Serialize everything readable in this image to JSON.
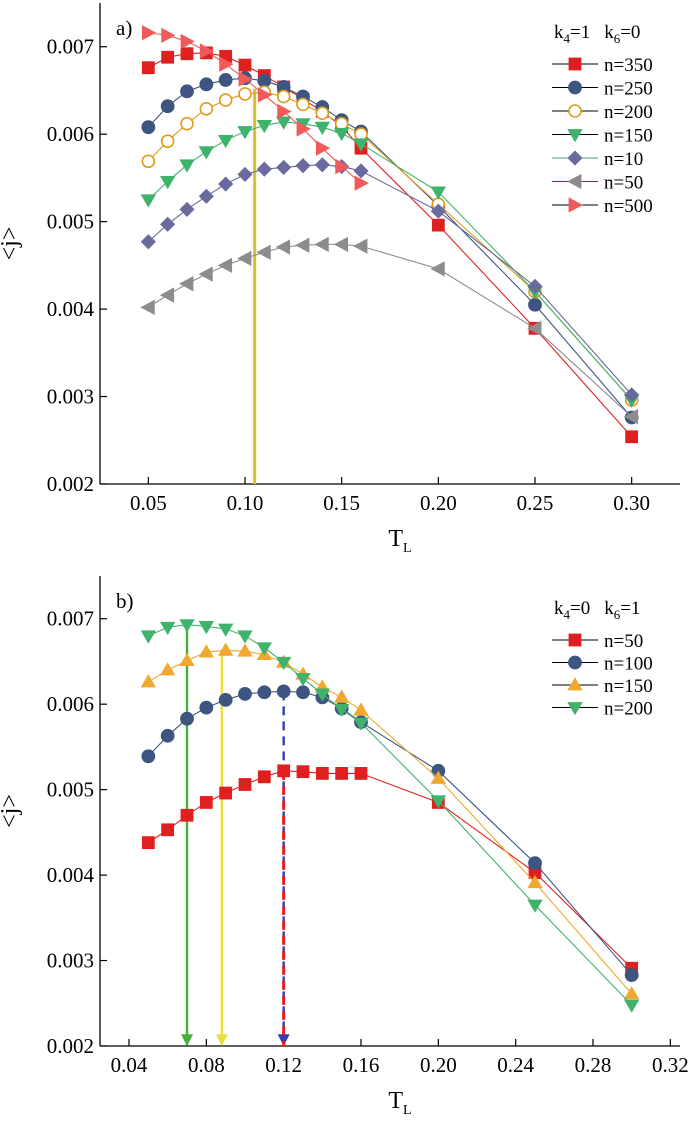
{
  "chart_data": [
    {
      "type": "line",
      "panel_label": "a)",
      "xlabel": "T",
      "xlabel_sub": "L",
      "ylabel": "<j>",
      "xlim": [
        0.025,
        0.325
      ],
      "ylim": [
        0.002,
        0.0075
      ],
      "xticks": [
        0.05,
        0.1,
        0.15,
        0.2,
        0.25,
        0.3
      ],
      "xtick_labels": [
        "0.05",
        "0.10",
        "0.15",
        "0.20",
        "0.25",
        "0.30"
      ],
      "yticks": [
        0.002,
        0.003,
        0.004,
        0.005,
        0.006,
        0.007
      ],
      "ytick_labels": [
        "0.002",
        "0.003",
        "0.004",
        "0.005",
        "0.006",
        "0.007"
      ],
      "legend_title": {
        "k4_label": "k",
        "k4_sub": "4",
        "k4_val": "=1",
        "k6_label": "k",
        "k6_sub": "6",
        "k6_val": "=0"
      },
      "legend_position": "top-right",
      "series": [
        {
          "name": "n=350",
          "color": "#e02020",
          "marker": "square",
          "x": [
            0.05,
            0.06,
            0.07,
            0.08,
            0.09,
            0.1,
            0.11,
            0.12,
            0.13,
            0.14,
            0.15,
            0.16,
            0.2,
            0.25,
            0.3
          ],
          "y": [
            0.00676,
            0.00688,
            0.00692,
            0.00693,
            0.00689,
            0.00679,
            0.00667,
            0.00654,
            0.0064,
            0.00626,
            0.00609,
            0.00584,
            0.00496,
            0.00378,
            0.00254
          ]
        },
        {
          "name": "n=250",
          "color": "#3d5580",
          "marker": "circle",
          "x": [
            0.05,
            0.06,
            0.07,
            0.08,
            0.09,
            0.1,
            0.11,
            0.12,
            0.13,
            0.14,
            0.15,
            0.16,
            0.2,
            0.25,
            0.3
          ],
          "y": [
            0.00608,
            0.00632,
            0.00649,
            0.00657,
            0.00662,
            0.00664,
            0.00661,
            0.00654,
            0.00643,
            0.00631,
            0.00616,
            0.00603,
            0.00518,
            0.00405,
            0.00276
          ]
        },
        {
          "name": "n=200",
          "color": "#e09b1a",
          "marker": "open-circle",
          "x": [
            0.05,
            0.06,
            0.07,
            0.08,
            0.09,
            0.1,
            0.11,
            0.12,
            0.13,
            0.14,
            0.15,
            0.16,
            0.2,
            0.25,
            0.3
          ],
          "y": [
            0.00569,
            0.00592,
            0.00612,
            0.00629,
            0.00639,
            0.00646,
            0.00648,
            0.00643,
            0.00634,
            0.00624,
            0.00612,
            0.006,
            0.0052,
            0.0042,
            0.00296
          ]
        },
        {
          "name": "n=150",
          "color": "#3fb36b",
          "marker": "triangle-down",
          "x": [
            0.05,
            0.06,
            0.07,
            0.08,
            0.09,
            0.1,
            0.11,
            0.12,
            0.13,
            0.14,
            0.15,
            0.16,
            0.2,
            0.25,
            0.3
          ],
          "y": [
            0.00525,
            0.00546,
            0.00565,
            0.0058,
            0.00593,
            0.00603,
            0.0061,
            0.00614,
            0.00612,
            0.00608,
            0.00601,
            0.00589,
            0.00534,
            0.0042,
            0.00296
          ]
        },
        {
          "name": "n=10",
          "color": "#6a6a9e",
          "marker": "diamond",
          "x": [
            0.05,
            0.06,
            0.07,
            0.08,
            0.09,
            0.1,
            0.11,
            0.12,
            0.13,
            0.14,
            0.15,
            0.16,
            0.2,
            0.25,
            0.3
          ],
          "y": [
            0.00477,
            0.00497,
            0.00514,
            0.00529,
            0.00543,
            0.00554,
            0.0056,
            0.00562,
            0.00564,
            0.00565,
            0.00563,
            0.00558,
            0.00512,
            0.00426,
            0.00302
          ]
        },
        {
          "name": "n=50",
          "color": "#8c8c8c",
          "marker": "triangle-left",
          "x": [
            0.05,
            0.06,
            0.07,
            0.08,
            0.09,
            0.1,
            0.11,
            0.12,
            0.13,
            0.14,
            0.15,
            0.16,
            0.2,
            0.25,
            0.3
          ],
          "y": [
            0.00402,
            0.00416,
            0.00429,
            0.0044,
            0.0045,
            0.00458,
            0.00465,
            0.00471,
            0.00473,
            0.00474,
            0.00474,
            0.00472,
            0.00446,
            0.00378,
            0.00277
          ]
        },
        {
          "name": "n=500",
          "color": "#f05a5a",
          "marker": "triangle-right",
          "x": [
            0.05,
            0.06,
            0.07,
            0.08,
            0.09,
            0.1,
            0.11,
            0.12,
            0.13,
            0.14,
            0.15,
            0.16
          ],
          "y": [
            0.00716,
            0.00713,
            0.00706,
            0.00695,
            0.0068,
            0.00663,
            0.00645,
            0.00626,
            0.00606,
            0.00584,
            0.00563,
            0.00544
          ]
        }
      ],
      "annotation_lines": [
        {
          "x": 0.105,
          "y_from": 0.002,
          "y_to": 0.00652,
          "color": "#d4c030",
          "style": "solid",
          "arrow": false
        }
      ]
    },
    {
      "type": "line",
      "panel_label": "b)",
      "xlabel": "T",
      "xlabel_sub": "L",
      "ylabel": "<j>",
      "xlim": [
        0.025,
        0.325
      ],
      "ylim": [
        0.002,
        0.0075
      ],
      "xticks": [
        0.04,
        0.08,
        0.12,
        0.16,
        0.2,
        0.24,
        0.28,
        0.32
      ],
      "xtick_labels": [
        "0.04",
        "0.08",
        "0.12",
        "0.16",
        "0.20",
        "0.24",
        "0.28",
        "0.32"
      ],
      "yticks": [
        0.002,
        0.003,
        0.004,
        0.005,
        0.006,
        0.007
      ],
      "ytick_labels": [
        "0.002",
        "0.003",
        "0.004",
        "0.005",
        "0.006",
        "0.007"
      ],
      "legend_title": {
        "k4_label": "k",
        "k4_sub": "4",
        "k4_val": "=0",
        "k6_label": "k",
        "k6_sub": "6",
        "k6_val": "=1"
      },
      "legend_position": "top-right",
      "series": [
        {
          "name": "n=50",
          "color": "#e02020",
          "marker": "square",
          "x": [
            0.05,
            0.06,
            0.07,
            0.08,
            0.09,
            0.1,
            0.11,
            0.12,
            0.13,
            0.14,
            0.15,
            0.16,
            0.2,
            0.25,
            0.3
          ],
          "y": [
            0.00438,
            0.00453,
            0.0047,
            0.00485,
            0.00496,
            0.00506,
            0.00515,
            0.00522,
            0.00521,
            0.00519,
            0.00519,
            0.00519,
            0.00485,
            0.00403,
            0.00291
          ]
        },
        {
          "name": "n=100",
          "color": "#3d5580",
          "marker": "circle",
          "x": [
            0.05,
            0.06,
            0.07,
            0.08,
            0.09,
            0.1,
            0.11,
            0.12,
            0.13,
            0.14,
            0.15,
            0.16,
            0.2,
            0.25,
            0.3
          ],
          "y": [
            0.00539,
            0.00563,
            0.00583,
            0.00596,
            0.00605,
            0.00612,
            0.00614,
            0.00615,
            0.00614,
            0.00608,
            0.00595,
            0.00579,
            0.00522,
            0.00414,
            0.00283
          ]
        },
        {
          "name": "n=150",
          "color": "#f0a830",
          "marker": "triangle-up",
          "x": [
            0.05,
            0.06,
            0.07,
            0.08,
            0.09,
            0.1,
            0.11,
            0.12,
            0.13,
            0.14,
            0.15,
            0.16,
            0.2,
            0.25,
            0.3
          ],
          "y": [
            0.00626,
            0.0064,
            0.00651,
            0.00661,
            0.00663,
            0.00662,
            0.00658,
            0.00649,
            0.00635,
            0.0062,
            0.00608,
            0.00593,
            0.00513,
            0.00391,
            0.00261
          ]
        },
        {
          "name": "n=200",
          "color": "#3fb36b",
          "marker": "triangle-down",
          "x": [
            0.05,
            0.06,
            0.07,
            0.08,
            0.09,
            0.1,
            0.11,
            0.12,
            0.13,
            0.14,
            0.15,
            0.16,
            0.2,
            0.25,
            0.3
          ],
          "y": [
            0.0068,
            0.0069,
            0.00693,
            0.00691,
            0.00688,
            0.0068,
            0.00666,
            0.00649,
            0.0063,
            0.00612,
            0.00594,
            0.00578,
            0.00487,
            0.00365,
            0.00248
          ]
        }
      ],
      "annotation_lines": [
        {
          "x": 0.07,
          "y_from": 0.00693,
          "y_to": 0.002,
          "color": "#45b03a",
          "style": "solid",
          "arrow": true
        },
        {
          "x": 0.088,
          "y_from": 0.00663,
          "y_to": 0.002,
          "color": "#e8e040",
          "style": "solid",
          "arrow": true
        },
        {
          "x": 0.12,
          "y_from": 0.00615,
          "y_to": 0.002,
          "color": "#3040b0",
          "style": "dashed",
          "arrow": true
        },
        {
          "x": 0.12,
          "y_from": 0.00522,
          "y_to": 0.002,
          "color": "#e02020",
          "style": "dashed",
          "arrow": false
        }
      ]
    }
  ]
}
